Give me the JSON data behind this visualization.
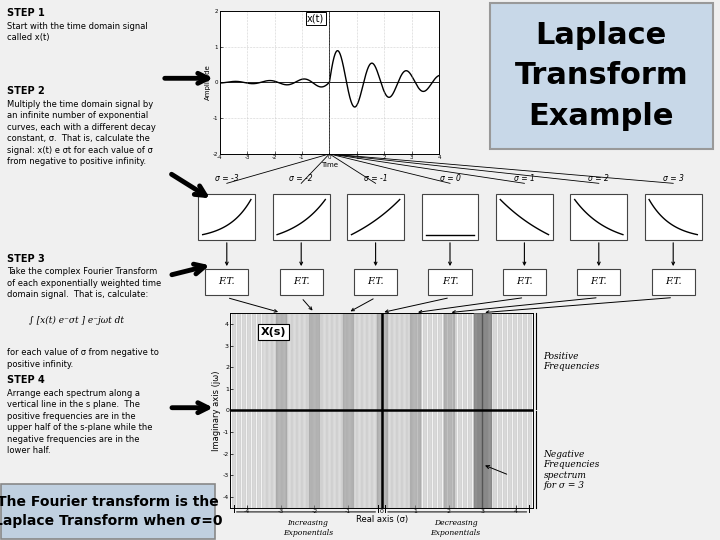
{
  "bg_color": "#f0f0f0",
  "title_box": {
    "text": "Laplace\nTransform\nExample",
    "fontsize": 22,
    "bg": "#c8d8e8",
    "border": "#999999"
  },
  "bottom_box": {
    "text": "The Fourier transform is the\nLaplace Transform when σ=0",
    "fontsize": 10,
    "bg": "#c0d0e0",
    "border": "#888888"
  },
  "step1_title": "STEP 1",
  "step1_text": "Start with the time domain signal\ncalled x(t)",
  "step2_title": "STEP 2",
  "step2_text": "Multiply the time domain signal by\nan infinite number of exponential\ncurves, each with a different decay\nconstant, σ.  That is, calculate the\nsignal: x(t) e σt for each value of σ\nfrom negative to positive infinity.",
  "step3_title": "STEP 3",
  "step3_text": "Take the complex Fourier Transform\nof each exponentially weighted time\ndomain signal.  That is, calculate:",
  "step3_integral": "∫ [x(t) e⁻σt ] e⁻jωt dt",
  "step3_sub": "for each value of σ from negative to\npositive infinity.",
  "step4_title": "STEP 4",
  "step4_text": "Arrange each spectrum along a\nvertical line in the s plane.  The\npositive frequencies are in the\nupper half of the s-plane while the\nnegative frequencies are in the\nlower half.",
  "sigma_labels": [
    "σ = -3",
    "σ = -2",
    "σ = -1",
    "σ = 0",
    "σ = 1",
    "σ = 2",
    "σ = 3"
  ],
  "sigma_vals": [
    -3,
    -2,
    -1,
    0,
    1,
    2,
    3
  ],
  "ft_label": "F.T.",
  "pos_freq_label": "Positive\nFrequencies",
  "neg_freq_label": "Negative\nFrequencies",
  "spectrum_label": "spectrum\nfor σ = 3",
  "inc_exp_label": "Increasing\nExponentials",
  "dec_exp_label": "Decreasing\nExponentials"
}
